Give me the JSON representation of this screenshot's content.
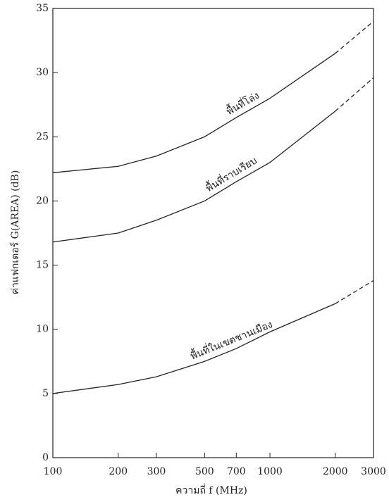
{
  "chart_data": {
    "type": "line",
    "x_label": "ความถี่ f (MHz)",
    "y_label": "ค่าแฟกเตอร์ G(AREA) (dB)",
    "x": [
      100,
      200,
      300,
      500,
      700,
      1000,
      2000,
      3000
    ],
    "series": [
      {
        "name": "พื้นที่โล่ง",
        "color": "#222222",
        "values": [
          22.2,
          22.7,
          23.5,
          25,
          26.5,
          28,
          31.5,
          34
        ]
      },
      {
        "name": "พื้นที่ราบเรียบ",
        "color": "#222222",
        "values": [
          16.8,
          17.5,
          18.5,
          20,
          21.5,
          23,
          27,
          29.6
        ]
      },
      {
        "name": "พื้นที่ในเขตชานเมือง",
        "color": "#222222",
        "values": [
          5,
          5.7,
          6.3,
          7.5,
          8.5,
          9.8,
          12,
          13.8
        ]
      }
    ],
    "dashed_after_x": 2000,
    "xscale": "log",
    "xlim": [
      100,
      3000
    ],
    "xticks": [
      100,
      200,
      300,
      500,
      700,
      1000,
      2000,
      3000
    ],
    "ylim": [
      0,
      35
    ],
    "yticks": [
      0,
      5,
      10,
      15,
      20,
      25,
      30,
      35
    ],
    "grid": false
  }
}
